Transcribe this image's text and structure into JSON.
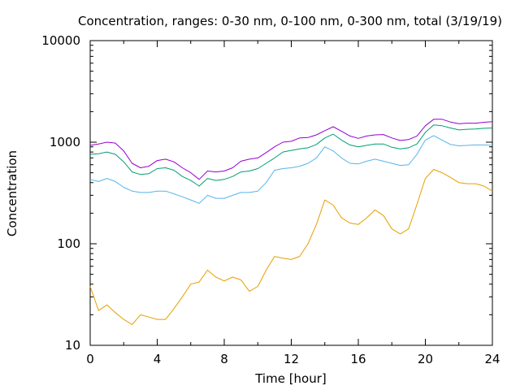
{
  "chart_data": {
    "type": "line",
    "title": "Concentration, ranges: 0-30 nm, 0-100 nm, 0-300 nm, total (3/19/19)",
    "xlabel": "Time [hour]",
    "ylabel": "Concentration",
    "xlim": [
      0,
      24
    ],
    "ylim": [
      10,
      10000
    ],
    "yscale": "log",
    "grid": false,
    "legend": "none",
    "x_ticks": [
      "0",
      "4",
      "8",
      "12",
      "16",
      "20",
      "24"
    ],
    "y_ticks": [
      "10",
      "100",
      "1000",
      "10000"
    ],
    "series": [
      {
        "color": "#9400d3",
        "x": [
          0,
          0.5,
          1,
          1.5,
          2,
          2.5,
          3,
          3.5,
          4,
          4.5,
          5,
          5.5,
          6,
          6.5,
          7,
          7.5,
          8,
          8.5,
          9,
          9.5,
          10,
          10.5,
          11,
          11.5,
          12,
          12.5,
          13,
          13.5,
          14,
          14.5,
          15,
          15.5,
          16,
          16.5,
          17,
          17.5,
          18,
          18.5,
          19,
          19.5,
          20,
          20.5,
          21,
          21.5,
          22,
          22.5,
          23,
          23.5,
          24
        ],
        "y": [
          930,
          960,
          1000,
          980,
          820,
          620,
          560,
          580,
          660,
          680,
          640,
          560,
          500,
          430,
          520,
          510,
          520,
          560,
          650,
          680,
          700,
          790,
          900,
          1000,
          1020,
          1100,
          1110,
          1180,
          1300,
          1420,
          1280,
          1150,
          1090,
          1150,
          1180,
          1190,
          1100,
          1040,
          1060,
          1150,
          1450,
          1680,
          1680,
          1580,
          1520,
          1540,
          1540,
          1570,
          1590
        ]
      },
      {
        "color": "#009e73",
        "x": [
          0,
          0.5,
          1,
          1.5,
          2,
          2.5,
          3,
          3.5,
          4,
          4.5,
          5,
          5.5,
          6,
          6.5,
          7,
          7.5,
          8,
          8.5,
          9,
          9.5,
          10,
          10.5,
          11,
          11.5,
          12,
          12.5,
          13,
          13.5,
          14,
          14.5,
          15,
          15.5,
          16,
          16.5,
          17,
          17.5,
          18,
          18.5,
          19,
          19.5,
          20,
          20.5,
          21,
          21.5,
          22,
          22.5,
          23,
          23.5,
          24
        ],
        "y": [
          760,
          770,
          800,
          760,
          640,
          510,
          480,
          490,
          550,
          560,
          530,
          460,
          420,
          370,
          440,
          420,
          430,
          460,
          510,
          520,
          550,
          620,
          700,
          800,
          830,
          860,
          880,
          950,
          1100,
          1200,
          1050,
          940,
          900,
          930,
          960,
          960,
          890,
          860,
          880,
          960,
          1250,
          1480,
          1450,
          1380,
          1320,
          1340,
          1350,
          1370,
          1380
        ]
      },
      {
        "color": "#56b4e9",
        "x": [
          0,
          0.5,
          1,
          1.5,
          2,
          2.5,
          3,
          3.5,
          4,
          4.5,
          5,
          5.5,
          6,
          6.5,
          7,
          7.5,
          8,
          8.5,
          9,
          9.5,
          10,
          10.5,
          11,
          11.5,
          12,
          12.5,
          13,
          13.5,
          14,
          14.5,
          15,
          15.5,
          16,
          16.5,
          17,
          17.5,
          18,
          18.5,
          19,
          19.5,
          20,
          20.5,
          21,
          21.5,
          22,
          22.5,
          23,
          23.5,
          24
        ],
        "y": [
          430,
          410,
          440,
          410,
          360,
          330,
          320,
          320,
          330,
          330,
          310,
          290,
          270,
          250,
          300,
          280,
          280,
          300,
          320,
          320,
          330,
          400,
          530,
          550,
          560,
          580,
          620,
          700,
          900,
          820,
          700,
          620,
          610,
          650,
          680,
          650,
          620,
          590,
          600,
          760,
          1050,
          1160,
          1050,
          950,
          920,
          930,
          940,
          940,
          930
        ]
      },
      {
        "color": "#e69f00",
        "x": [
          0,
          0.5,
          1,
          1.5,
          2,
          2.5,
          3,
          3.5,
          4,
          4.5,
          5,
          5.5,
          6,
          6.5,
          7,
          7.5,
          8,
          8.5,
          9,
          9.5,
          10,
          10.5,
          11,
          11.5,
          12,
          12.5,
          13,
          13.5,
          14,
          14.5,
          15,
          15.5,
          16,
          16.5,
          17,
          17.5,
          18,
          18.5,
          19,
          19.5,
          20,
          20.5,
          21,
          21.5,
          22,
          22.5,
          23,
          23.5,
          24
        ],
        "y": [
          38,
          22,
          25,
          21,
          18,
          16,
          20,
          19,
          18,
          18,
          23,
          30,
          40,
          42,
          55,
          47,
          43,
          47,
          44,
          34,
          38,
          55,
          75,
          72,
          70,
          75,
          100,
          155,
          270,
          240,
          180,
          160,
          155,
          180,
          215,
          190,
          140,
          125,
          140,
          245,
          440,
          540,
          500,
          450,
          400,
          390,
          390,
          370,
          330
        ]
      }
    ]
  }
}
